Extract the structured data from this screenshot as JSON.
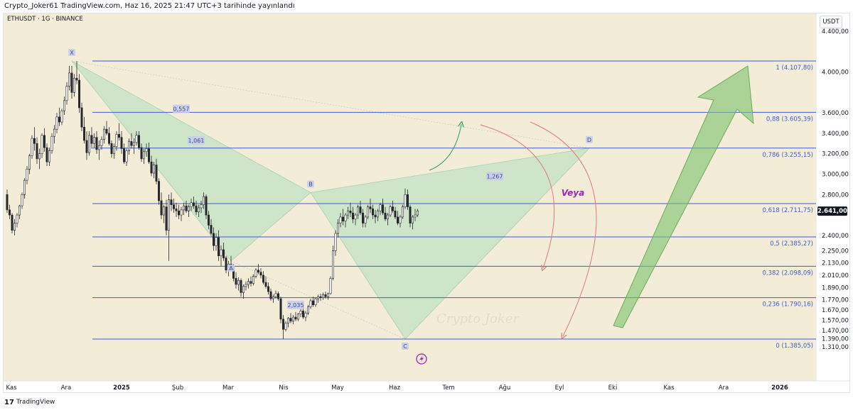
{
  "header": {
    "published": "Crypto_Joker61 TradingView.com, Haz 16, 2025 21:47 UTC+3 tarihinde yayınlandı"
  },
  "symbol_line": "ETHUSDT · 1G · BINANCE",
  "unit_button": "USDT",
  "footer": {
    "logo": "17",
    "brand": "TradingView"
  },
  "watermark": "Crypto Joker",
  "annotation_text": "Veya",
  "colors": {
    "bg_shade": "#f3ecd6",
    "candle": "#26282e",
    "fib_line": "#3d5cd6",
    "fib_label": "#3d5cd6",
    "pattern_fill": "#bfe3c3",
    "arrow_green": "#7cc36d",
    "arrow_red": "#e07a7a",
    "annotation": "#9c27b0",
    "price_badge": "#131722"
  },
  "chart_data": {
    "type": "candlestick",
    "title": "",
    "xlabel": "",
    "ylabel": "",
    "ylim": [
      1240,
      4780
    ],
    "x_ticks": [
      "Kas",
      "Ara",
      "2025",
      "Şub",
      "Mar",
      "Nis",
      "May",
      "Haz",
      "Tem",
      "Ağu",
      "Eyl",
      "Eki",
      "Kas",
      "Ara",
      "2026"
    ],
    "y_ticks": [
      "4.400,00",
      "4.000,00",
      "3.600,00",
      "3.400,00",
      "3.200,00",
      "3.000,00",
      "2.800,00",
      "2.400,00",
      "2.250,00",
      "2.130,00",
      "2.010,00",
      "1.890,00",
      "1.770,00",
      "1.670,00",
      "1.570,00",
      "1.470,00",
      "1.390,00",
      "1.310,00"
    ],
    "last_price": {
      "label": "2.641,00",
      "value": 2641
    },
    "fib_levels": [
      {
        "ratio": "1",
        "price": 4107.8,
        "label": "1 (4.107,80)"
      },
      {
        "ratio": "0.88",
        "price": 3605.39,
        "label": "0,88 (3.605,39)"
      },
      {
        "ratio": "0.786",
        "price": 3255.15,
        "label": "0,786 (3.255,15)"
      },
      {
        "ratio": "0.618",
        "price": 2711.75,
        "label": "0,618 (2.711,75)"
      },
      {
        "ratio": "0.5",
        "price": 2385.27,
        "label": "0,5 (2.385,27)"
      },
      {
        "ratio": "0.382",
        "price": 2098.09,
        "label": "0,382 (2.098,09)"
      },
      {
        "ratio": "0.236",
        "price": 1790.16,
        "label": "0,236 (1.790,16)"
      },
      {
        "ratio": "0",
        "price": 1385.05,
        "label": "0 (1.385,05)"
      }
    ],
    "pattern_points": [
      {
        "label": "X",
        "day": 26,
        "price": 4107.8
      },
      {
        "label": "A",
        "day": 90,
        "price": 2150
      },
      {
        "label": "B",
        "day": 122,
        "price": 2820
      },
      {
        "label": "C",
        "day": 160,
        "price": 1385
      },
      {
        "label": "D",
        "day": 234,
        "price": 3255
      }
    ],
    "ratio_labels": [
      {
        "text": "0,557",
        "day": 70,
        "price": 3640
      },
      {
        "text": "1,267",
        "day": 196,
        "price": 2980
      },
      {
        "text": "2,035",
        "day": 116,
        "price": 1720
      },
      {
        "text": "1,061",
        "day": 76,
        "price": 3330
      }
    ],
    "candles_ohlc": [
      [
        2800,
        2850,
        2620,
        2650
      ],
      [
        2650,
        2700,
        2560,
        2600
      ],
      [
        2600,
        2620,
        2420,
        2450
      ],
      [
        2450,
        2560,
        2400,
        2520
      ],
      [
        2520,
        2620,
        2480,
        2600
      ],
      [
        2600,
        2700,
        2560,
        2690
      ],
      [
        2690,
        2820,
        2660,
        2800
      ],
      [
        2800,
        2960,
        2760,
        2940
      ],
      [
        2940,
        3080,
        2900,
        3050
      ],
      [
        3050,
        3200,
        3000,
        3180
      ],
      [
        3180,
        3380,
        3150,
        3350
      ],
      [
        3350,
        3460,
        3230,
        3300
      ],
      [
        3300,
        3360,
        3100,
        3150
      ],
      [
        3150,
        3250,
        3050,
        3200
      ],
      [
        3200,
        3400,
        3160,
        3380
      ],
      [
        3380,
        3450,
        3220,
        3260
      ],
      [
        3260,
        3300,
        3080,
        3120
      ],
      [
        3120,
        3260,
        3080,
        3230
      ],
      [
        3230,
        3400,
        3200,
        3370
      ],
      [
        3370,
        3480,
        3300,
        3440
      ],
      [
        3440,
        3600,
        3400,
        3560
      ],
      [
        3560,
        3650,
        3470,
        3510
      ],
      [
        3510,
        3640,
        3480,
        3620
      ],
      [
        3620,
        3760,
        3580,
        3720
      ],
      [
        3720,
        3900,
        3680,
        3860
      ],
      [
        3860,
        4060,
        3820,
        3990
      ],
      [
        3990,
        4060,
        3740,
        3800
      ],
      [
        3800,
        3980,
        3760,
        3940
      ],
      [
        3940,
        4107,
        3880,
        3920
      ],
      [
        3920,
        3980,
        3600,
        3650
      ],
      [
        3650,
        3700,
        3420,
        3460
      ],
      [
        3460,
        3560,
        3300,
        3330
      ],
      [
        3330,
        3420,
        3140,
        3210
      ],
      [
        3210,
        3420,
        3180,
        3380
      ],
      [
        3380,
        3460,
        3250,
        3300
      ],
      [
        3300,
        3400,
        3260,
        3360
      ],
      [
        3360,
        3420,
        3200,
        3240
      ],
      [
        3240,
        3330,
        3140,
        3280
      ],
      [
        3280,
        3370,
        3240,
        3340
      ],
      [
        3340,
        3470,
        3300,
        3440
      ],
      [
        3440,
        3520,
        3380,
        3400
      ],
      [
        3400,
        3460,
        3280,
        3300
      ],
      [
        3300,
        3330,
        3160,
        3200
      ],
      [
        3200,
        3300,
        3150,
        3270
      ],
      [
        3270,
        3420,
        3230,
        3390
      ],
      [
        3390,
        3500,
        3330,
        3360
      ],
      [
        3360,
        3420,
        3200,
        3250
      ],
      [
        3250,
        3300,
        3100,
        3120
      ],
      [
        3120,
        3250,
        3080,
        3230
      ],
      [
        3230,
        3350,
        3190,
        3320
      ],
      [
        3320,
        3400,
        3250,
        3280
      ],
      [
        3280,
        3350,
        3200,
        3310
      ],
      [
        3310,
        3420,
        3280,
        3380
      ],
      [
        3380,
        3420,
        3240,
        3260
      ],
      [
        3260,
        3300,
        3120,
        3150
      ],
      [
        3150,
        3250,
        3100,
        3220
      ],
      [
        3220,
        3300,
        3170,
        3250
      ],
      [
        3250,
        3310,
        3100,
        3120
      ],
      [
        3120,
        3180,
        2980,
        3010
      ],
      [
        3010,
        3120,
        2960,
        3090
      ],
      [
        3090,
        3150,
        2900,
        2930
      ],
      [
        2930,
        2960,
        2700,
        2740
      ],
      [
        2740,
        2820,
        2560,
        2600
      ],
      [
        2600,
        2700,
        2520,
        2680
      ],
      [
        2680,
        2750,
        2400,
        2450
      ],
      [
        2450,
        2800,
        2150,
        2750
      ],
      [
        2750,
        2820,
        2640,
        2700
      ],
      [
        2700,
        2760,
        2620,
        2660
      ],
      [
        2660,
        2720,
        2580,
        2640
      ],
      [
        2640,
        2700,
        2560,
        2600
      ],
      [
        2600,
        2680,
        2540,
        2650
      ],
      [
        2650,
        2720,
        2600,
        2690
      ],
      [
        2690,
        2740,
        2620,
        2640
      ],
      [
        2640,
        2700,
        2580,
        2680
      ],
      [
        2680,
        2760,
        2640,
        2720
      ],
      [
        2720,
        2780,
        2660,
        2690
      ],
      [
        2690,
        2740,
        2600,
        2630
      ],
      [
        2630,
        2700,
        2580,
        2670
      ],
      [
        2670,
        2740,
        2620,
        2700
      ],
      [
        2700,
        2820,
        2660,
        2780
      ],
      [
        2780,
        2800,
        2560,
        2600
      ],
      [
        2600,
        2640,
        2460,
        2500
      ],
      [
        2500,
        2560,
        2400,
        2420
      ],
      [
        2420,
        2480,
        2250,
        2300
      ],
      [
        2300,
        2420,
        2250,
        2380
      ],
      [
        2380,
        2450,
        2150,
        2200
      ],
      [
        2200,
        2300,
        2100,
        2260
      ],
      [
        2260,
        2330,
        2150,
        2180
      ],
      [
        2180,
        2200,
        2030,
        2060
      ],
      [
        2060,
        2150,
        2000,
        2120
      ],
      [
        2120,
        2200,
        2050,
        2080
      ],
      [
        2080,
        2120,
        1950,
        1980
      ],
      [
        1980,
        2040,
        1880,
        1920
      ],
      [
        1920,
        1990,
        1860,
        1960
      ],
      [
        1960,
        1980,
        1800,
        1840
      ],
      [
        1840,
        1920,
        1780,
        1900
      ],
      [
        1900,
        1950,
        1860,
        1920
      ],
      [
        1920,
        1980,
        1880,
        1950
      ],
      [
        1950,
        2000,
        1900,
        1930
      ],
      [
        1930,
        2020,
        1910,
        2000
      ],
      [
        2000,
        2080,
        1980,
        2060
      ],
      [
        2060,
        2120,
        2020,
        2040
      ],
      [
        2040,
        2080,
        1980,
        2010
      ],
      [
        2010,
        2050,
        1920,
        1940
      ],
      [
        1940,
        2000,
        1880,
        1900
      ],
      [
        1900,
        1940,
        1820,
        1850
      ],
      [
        1850,
        1880,
        1760,
        1780
      ],
      [
        1780,
        1820,
        1740,
        1800
      ],
      [
        1800,
        1860,
        1780,
        1830
      ],
      [
        1830,
        1850,
        1760,
        1780
      ],
      [
        1780,
        1800,
        1540,
        1580
      ],
      [
        1580,
        1620,
        1385,
        1480
      ],
      [
        1480,
        1560,
        1460,
        1540
      ],
      [
        1540,
        1600,
        1500,
        1590
      ],
      [
        1590,
        1640,
        1540,
        1560
      ],
      [
        1560,
        1620,
        1530,
        1600
      ],
      [
        1600,
        1650,
        1560,
        1580
      ],
      [
        1580,
        1640,
        1560,
        1630
      ],
      [
        1630,
        1680,
        1600,
        1660
      ],
      [
        1660,
        1700,
        1580,
        1600
      ],
      [
        1600,
        1660,
        1560,
        1640
      ],
      [
        1640,
        1720,
        1620,
        1700
      ],
      [
        1700,
        1780,
        1680,
        1760
      ],
      [
        1760,
        1800,
        1700,
        1720
      ],
      [
        1720,
        1790,
        1700,
        1780
      ],
      [
        1780,
        1820,
        1740,
        1800
      ],
      [
        1800,
        1830,
        1760,
        1790
      ],
      [
        1790,
        1840,
        1770,
        1820
      ],
      [
        1820,
        1850,
        1780,
        1800
      ],
      [
        1800,
        1840,
        1770,
        1830
      ],
      [
        1830,
        2000,
        1820,
        1980
      ],
      [
        1980,
        2300,
        1960,
        2250
      ],
      [
        2250,
        2450,
        2200,
        2420
      ],
      [
        2420,
        2560,
        2380,
        2520
      ],
      [
        2520,
        2620,
        2480,
        2580
      ],
      [
        2580,
        2660,
        2500,
        2540
      ],
      [
        2540,
        2620,
        2480,
        2600
      ],
      [
        2600,
        2680,
        2560,
        2640
      ],
      [
        2640,
        2720,
        2580,
        2620
      ],
      [
        2620,
        2680,
        2520,
        2560
      ],
      [
        2560,
        2620,
        2500,
        2600
      ],
      [
        2600,
        2700,
        2560,
        2680
      ],
      [
        2680,
        2740,
        2600,
        2620
      ],
      [
        2620,
        2660,
        2480,
        2520
      ],
      [
        2520,
        2600,
        2480,
        2580
      ],
      [
        2580,
        2700,
        2560,
        2680
      ],
      [
        2680,
        2760,
        2620,
        2660
      ],
      [
        2660,
        2700,
        2560,
        2600
      ],
      [
        2600,
        2650,
        2520,
        2580
      ],
      [
        2580,
        2660,
        2540,
        2640
      ],
      [
        2640,
        2720,
        2600,
        2700
      ],
      [
        2700,
        2760,
        2600,
        2620
      ],
      [
        2620,
        2680,
        2540,
        2560
      ],
      [
        2560,
        2620,
        2500,
        2600
      ],
      [
        2600,
        2700,
        2580,
        2680
      ],
      [
        2680,
        2740,
        2620,
        2640
      ],
      [
        2640,
        2680,
        2560,
        2580
      ],
      [
        2580,
        2640,
        2500,
        2520
      ],
      [
        2520,
        2600,
        2480,
        2580
      ],
      [
        2580,
        2700,
        2560,
        2680
      ],
      [
        2680,
        2860,
        2660,
        2800
      ],
      [
        2800,
        2850,
        2650,
        2680
      ],
      [
        2680,
        2700,
        2480,
        2520
      ],
      [
        2520,
        2600,
        2460,
        2580
      ],
      [
        2580,
        2660,
        2540,
        2600
      ],
      [
        2600,
        2660,
        2580,
        2641
      ]
    ]
  }
}
